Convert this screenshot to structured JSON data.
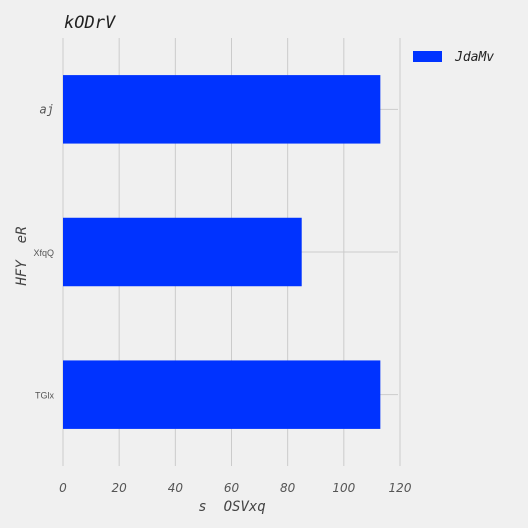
{
  "chart_data": {
    "type": "bar",
    "orientation": "horizontal",
    "title": "kODrV",
    "xlabel": "s  OSVxq",
    "ylabel": "HFY  eR",
    "categories": [
      "aj",
      "XfqQ",
      "TGlx"
    ],
    "category_label_styles": [
      "italic",
      "normal",
      "normal"
    ],
    "series": [
      {
        "name": "JdaMv",
        "values": [
          113,
          85,
          113
        ],
        "color": "#0033ff"
      }
    ],
    "xlim": [
      0,
      120
    ],
    "xticks": [
      "0",
      "20",
      "40",
      "60",
      "80",
      "100",
      "120"
    ],
    "grid": true,
    "legend_position": "top-right"
  }
}
